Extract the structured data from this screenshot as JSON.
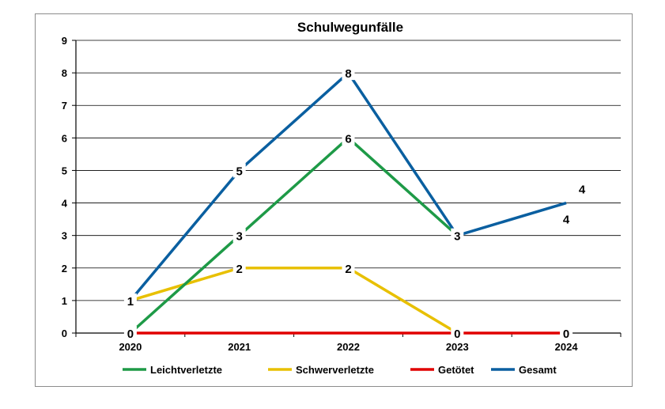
{
  "chart_data": {
    "type": "line",
    "title": "Schulwegunfälle",
    "xlabel": "",
    "ylabel": "",
    "categories": [
      "2020",
      "2021",
      "2022",
      "2023",
      "2024"
    ],
    "ylim": [
      0,
      9
    ],
    "yticks": [
      "0",
      "1",
      "2",
      "3",
      "4",
      "5",
      "6",
      "7",
      "8",
      "9"
    ],
    "grid": true,
    "legend_position": "bottom",
    "series": [
      {
        "name": "Leichtverletzte",
        "color": "#1e9a47",
        "values": [
          0,
          3,
          6,
          3,
          null
        ],
        "labels": [
          "0",
          "3",
          "6",
          "3",
          "4"
        ]
      },
      {
        "name": "Schwerverletzte",
        "color": "#e8c000",
        "values": [
          1,
          2,
          2,
          0,
          null
        ],
        "labels": [
          "1",
          "2",
          "2",
          "0",
          ""
        ]
      },
      {
        "name": "Getötet",
        "color": "#e00000",
        "values": [
          0,
          0,
          0,
          0,
          0
        ],
        "labels": [
          "",
          "",
          "",
          "",
          "0"
        ]
      },
      {
        "name": "Gesamt",
        "color": "#0a5fa0",
        "values": [
          1,
          5,
          8,
          3,
          4
        ],
        "labels": [
          "",
          "5",
          "8",
          "",
          "4"
        ]
      }
    ]
  }
}
